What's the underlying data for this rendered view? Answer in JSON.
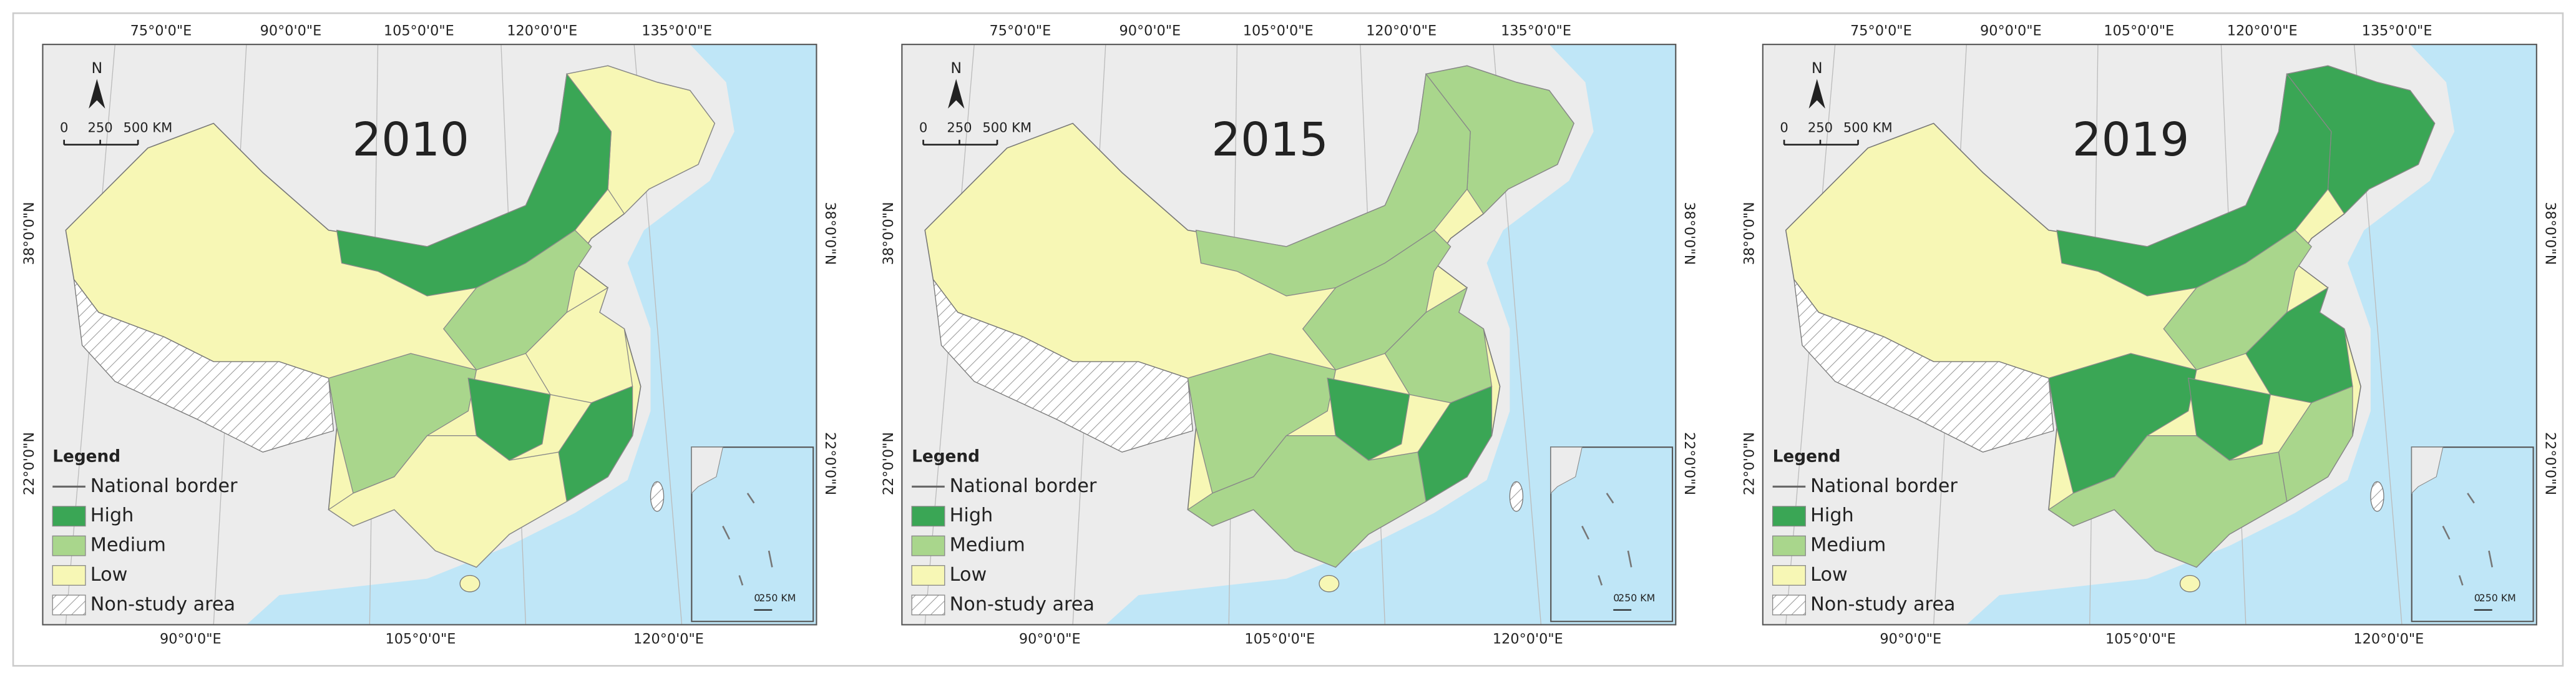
{
  "panels": [
    {
      "year": "2010"
    },
    {
      "year": "2015"
    },
    {
      "year": "2019"
    }
  ],
  "map": {
    "top_lon_labels": [
      "75°0'0\"E",
      "90°0'0\"E",
      "105°0'0\"E",
      "120°0'0\"E",
      "135°0'0\"E"
    ],
    "bottom_lon_labels": [
      "90°0'0\"E",
      "105°0'0\"E",
      "120°0'0\"E"
    ],
    "lat_labels": [
      "38°0'0\"N",
      "22°0'0\"N"
    ],
    "north": "N",
    "scale": [
      "0",
      "250",
      "500 KM"
    ],
    "inset_scale": [
      "0",
      "250 KM"
    ],
    "legend": {
      "title": "Legend",
      "items": [
        {
          "label": "National border"
        },
        {
          "label": "High",
          "color": "#3aa655"
        },
        {
          "label": "Medium",
          "color": "#a9d68c"
        },
        {
          "label": "Low",
          "color": "#f7f7b5"
        },
        {
          "label": "Non-study area"
        }
      ]
    }
  }
}
